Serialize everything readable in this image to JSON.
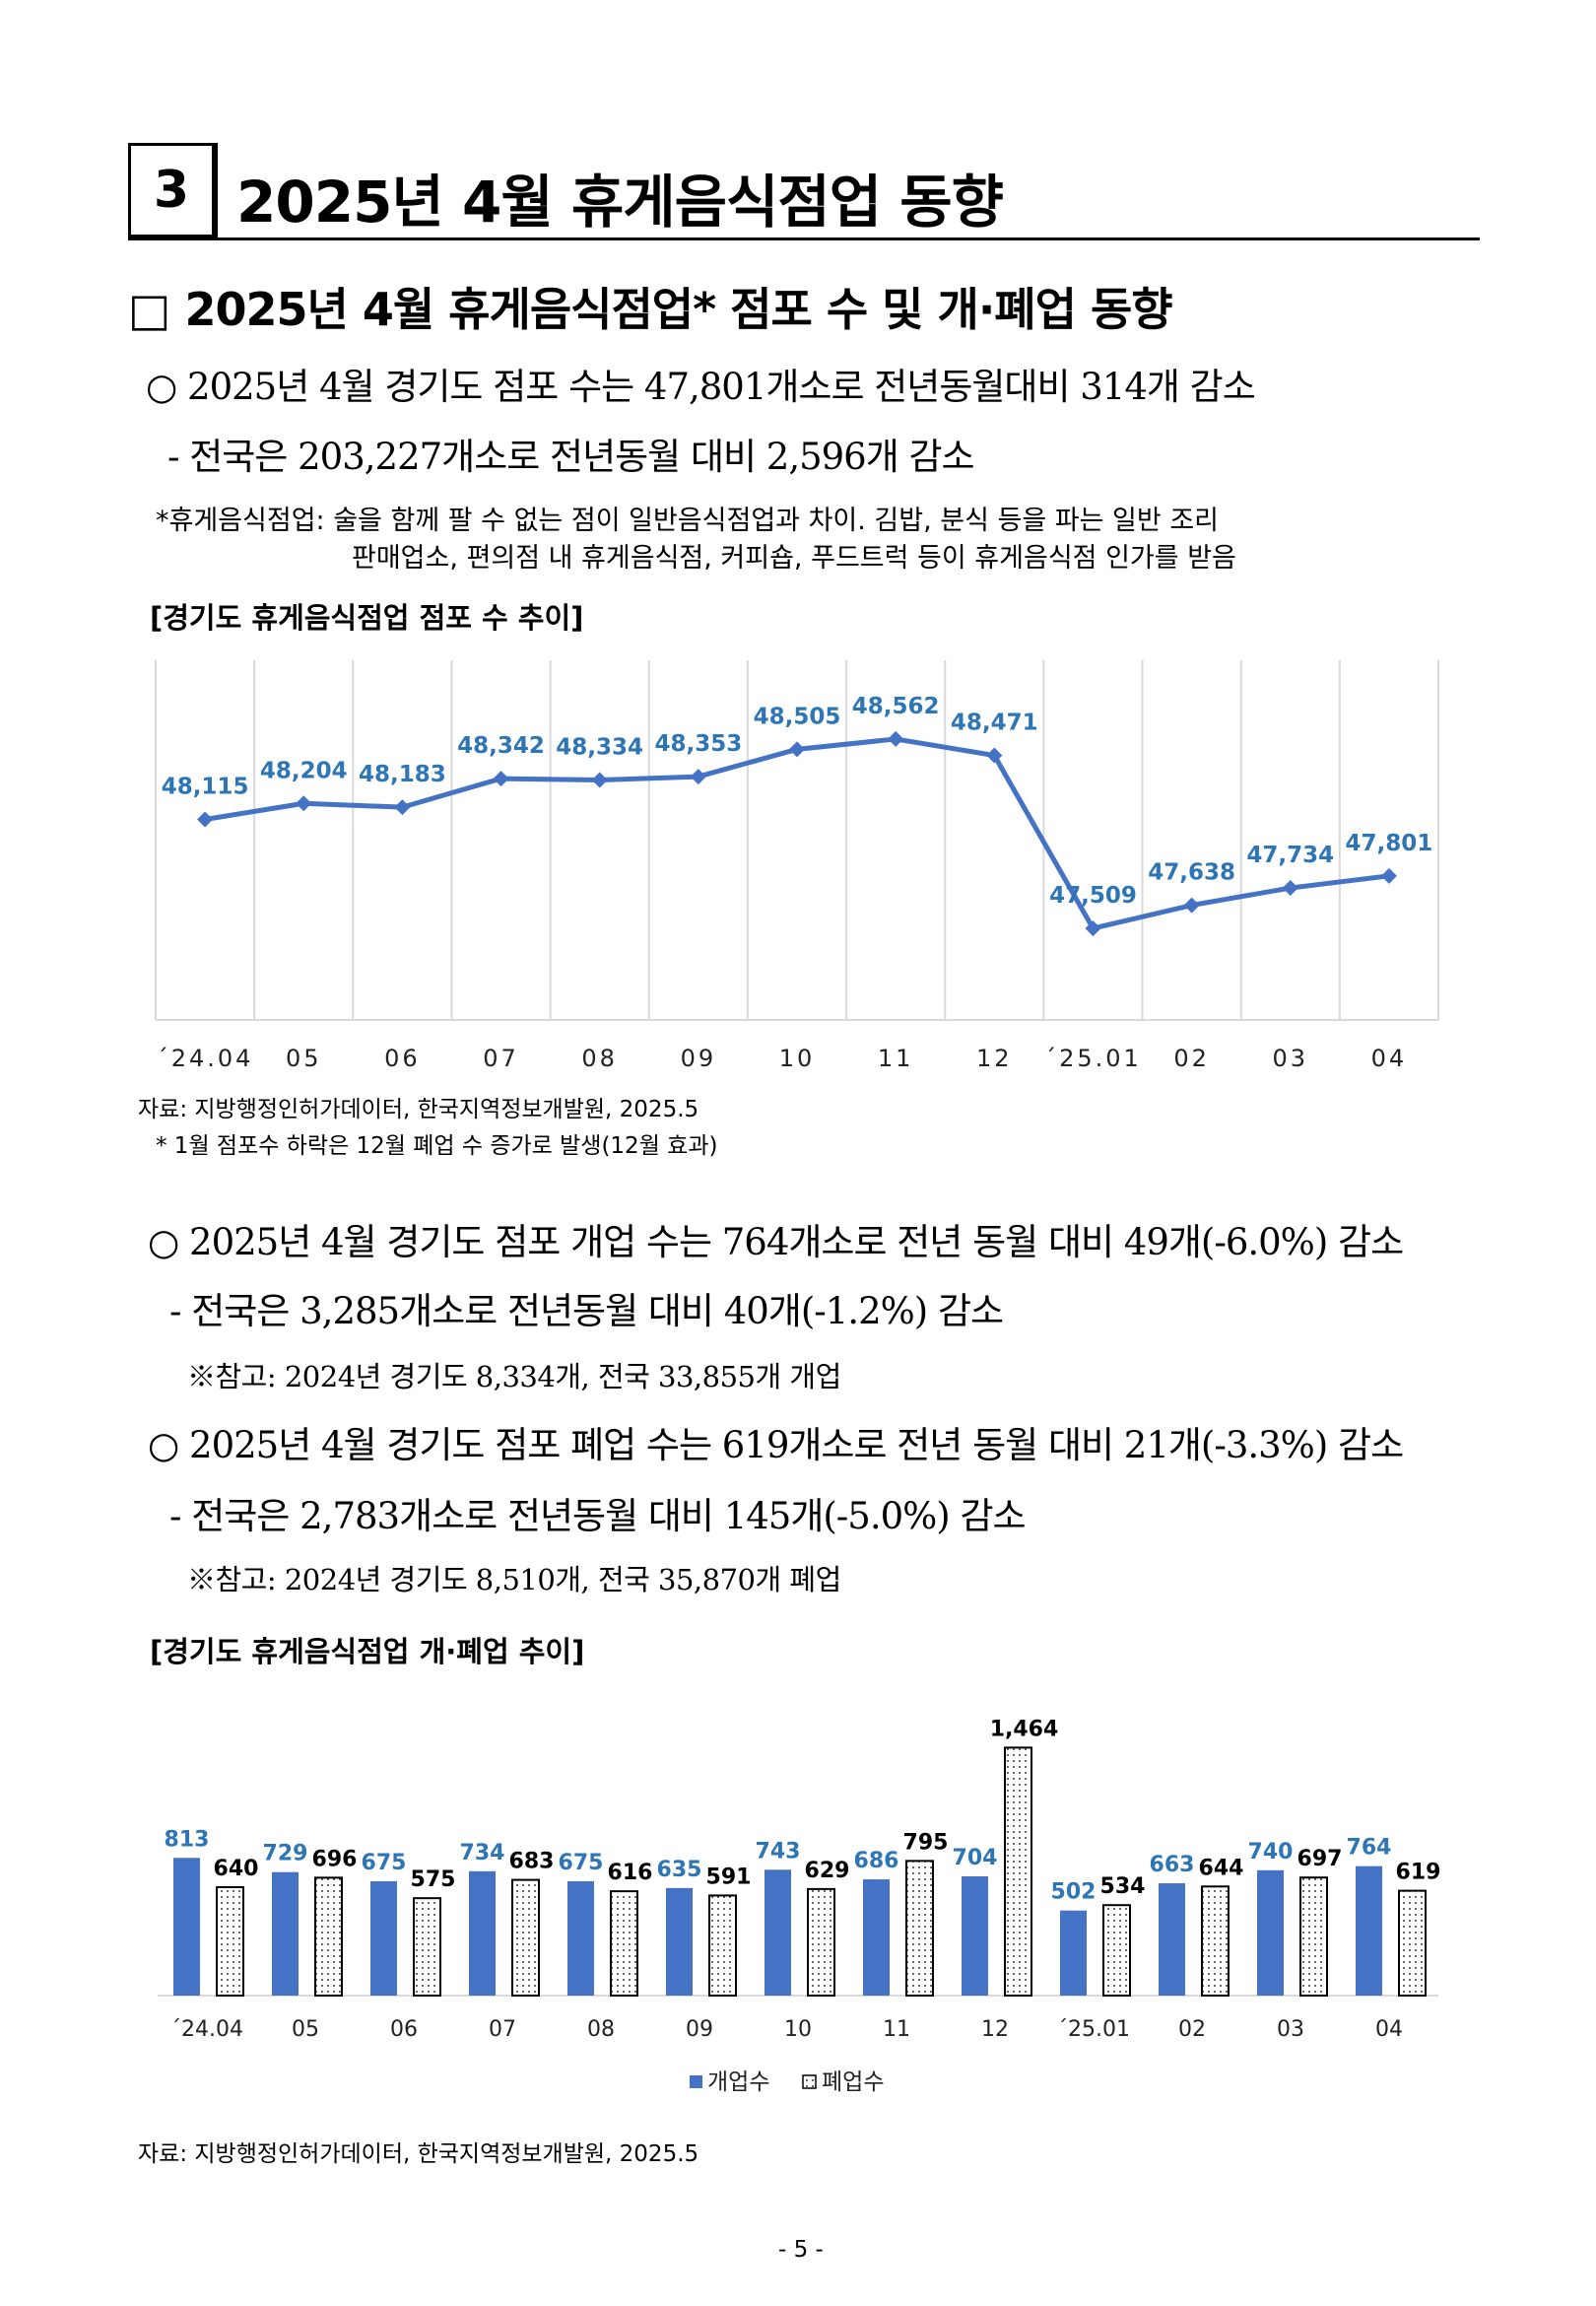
{
  "section": {
    "number": "3",
    "title": "2025년 4월 휴게음식점업 동향"
  },
  "subheading": "□ 2025년 4월 휴게음식점업* 점포 수 및 개·폐업 동향",
  "stores": {
    "bullet": "○ 2025년 4월 경기도 점포 수는 47,801개소로 전년동월대비 314개 감소",
    "national": "- 전국은 203,227개소로 전년동월 대비 2,596개 감소",
    "footnote_line1": "*휴게음식점업: 술을 함께 팔 수 없는 점이 일반음식점업과 차이. 김밥, 분식 등을 파는 일반 조리",
    "footnote_line2": "판매업소, 편의점 내 휴게음식점, 커피숍, 푸드트럭 등이 휴게음식점 인가를 받음",
    "chart_caption": "[경기도 휴게음식점업 점포 수 추이]",
    "source": "자료: 지방행정인허가데이터, 한국지역정보개발원, 2025.5",
    "source_note": "* 1월 점포수 하락은 12월 폐업 수 증가로 발생(12월 효과)"
  },
  "openclose": {
    "open_bullet": "○ 2025년 4월 경기도 점포 개업 수는 764개소로 전년 동월 대비 49개(-6.0%) 감소",
    "open_national": "- 전국은  3,285개소로 전년동월 대비 40개(-1.2%) 감소",
    "open_ref": "※참고: 2024년 경기도 8,334개, 전국 33,855개 개업",
    "close_bullet": "○ 2025년 4월 경기도 점포 폐업 수는 619개소로 전년 동월 대비 21개(-3.3%) 감소",
    "close_national": "- 전국은  2,783개소로 전년동월 대비 145개(-5.0%) 감소",
    "close_ref": "※참고: 2024년 경기도 8,510개, 전국 35,870개 폐업",
    "chart_caption": "[경기도 휴게음식점업 개·폐업 추이]",
    "source": "자료: 지방행정인허가데이터, 한국지역정보개발원, 2025.5"
  },
  "page_number": "- 5 -",
  "colors": {
    "line": "#4472C4",
    "label_blue": "#2E75B6",
    "open_bar": "#4472C4",
    "grid": "#D9D9D9"
  },
  "chart_data": [
    {
      "type": "line",
      "title": "[경기도 휴게음식점업 점포 수 추이]",
      "categories": [
        "´24.04",
        "05",
        "06",
        "07",
        "08",
        "09",
        "10",
        "11",
        "12",
        "´25.01",
        "02",
        "03",
        "04"
      ],
      "values": [
        48115,
        48204,
        48183,
        48342,
        48334,
        48353,
        48505,
        48562,
        48471,
        47509,
        47638,
        47734,
        47801
      ],
      "labels": [
        "48,115",
        "48,204",
        "48,183",
        "48,342",
        "48,334",
        "48,353",
        "48,505",
        "48,562",
        "48,471",
        "47,509",
        "47,638",
        "47,734",
        "47,801"
      ],
      "ylim": [
        47000,
        49000
      ],
      "grid": "vertical"
    },
    {
      "type": "bar",
      "title": "[경기도 휴게음식점업 개·폐업 추이]",
      "categories": [
        "´24.04",
        "05",
        "06",
        "07",
        "08",
        "09",
        "10",
        "11",
        "12",
        "´25.01",
        "02",
        "03",
        "04"
      ],
      "series": [
        {
          "name": "개업수",
          "values": [
            813,
            729,
            675,
            734,
            675,
            635,
            743,
            686,
            704,
            502,
            663,
            740,
            764
          ],
          "labels": [
            "813",
            "729",
            "675",
            "734",
            "675",
            "635",
            "743",
            "686",
            "704",
            "502",
            "663",
            "740",
            "764"
          ]
        },
        {
          "name": "폐업수",
          "values": [
            640,
            696,
            575,
            683,
            616,
            591,
            629,
            795,
            1464,
            534,
            644,
            697,
            619
          ],
          "labels": [
            "640",
            "696",
            "575",
            "683",
            "616",
            "591",
            "629",
            "795",
            "1,464",
            "534",
            "644",
            "697",
            "619"
          ]
        }
      ],
      "ylim": [
        0,
        1600
      ],
      "legend": "bottom"
    }
  ]
}
